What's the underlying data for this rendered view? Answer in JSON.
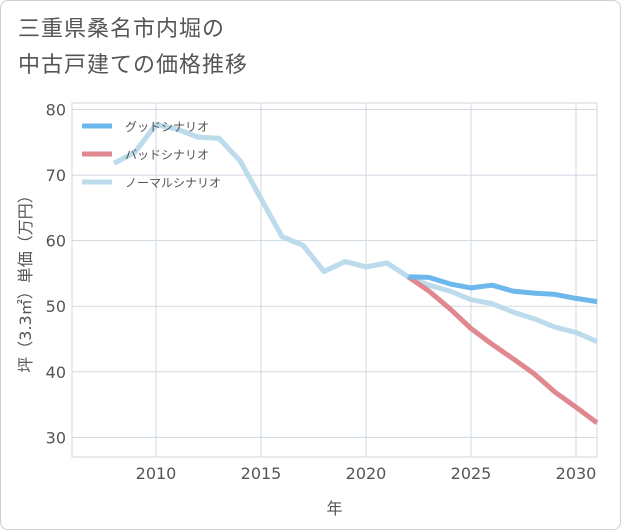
{
  "title_lines": [
    "三重県桑名市内堀の",
    "中古戸建ての価格推移"
  ],
  "chart_data": {
    "type": "line",
    "title": "三重県桑名市内堀の中古戸建ての価格推移",
    "xlabel": "年",
    "ylabel": "坪（3.3㎡）単価（万円）",
    "xlim": [
      2006,
      2031
    ],
    "ylim": [
      27,
      81
    ],
    "xticks": [
      2010,
      2015,
      2020,
      2025,
      2030
    ],
    "yticks": [
      30,
      40,
      50,
      60,
      70,
      80
    ],
    "grid": true,
    "legend_position": "top-left",
    "series": [
      {
        "name": "グッドシナリオ",
        "color": "#6cb8ec",
        "x": [
          2022,
          2023,
          2024,
          2025,
          2026,
          2027,
          2028,
          2029,
          2030,
          2031
        ],
        "y": [
          54.5,
          54.4,
          53.4,
          52.8,
          53.2,
          52.3,
          52.0,
          51.8,
          51.2,
          50.7
        ]
      },
      {
        "name": "バッドシナリオ",
        "color": "#e0888f",
        "x": [
          2022,
          2023,
          2024,
          2025,
          2026,
          2027,
          2028,
          2029,
          2030,
          2031
        ],
        "y": [
          54.5,
          52.3,
          49.6,
          46.6,
          44.2,
          42.0,
          39.7,
          36.9,
          34.6,
          32.2
        ]
      },
      {
        "name": "ノーマルシナリオ",
        "color": "#bcdcec",
        "x": [
          2008,
          2009,
          2010,
          2011,
          2012,
          2013,
          2014,
          2015,
          2016,
          2017,
          2018,
          2019,
          2020,
          2021,
          2022,
          2023,
          2024,
          2025,
          2026,
          2027,
          2028,
          2029,
          2030,
          2031
        ],
        "y": [
          71.8,
          73.5,
          77.7,
          77.0,
          75.8,
          75.6,
          72.2,
          66.4,
          60.6,
          59.3,
          55.3,
          56.8,
          56.0,
          56.6,
          54.5,
          53.2,
          52.3,
          51.0,
          50.4,
          49.1,
          48.1,
          46.8,
          46.0,
          44.6
        ]
      }
    ]
  }
}
